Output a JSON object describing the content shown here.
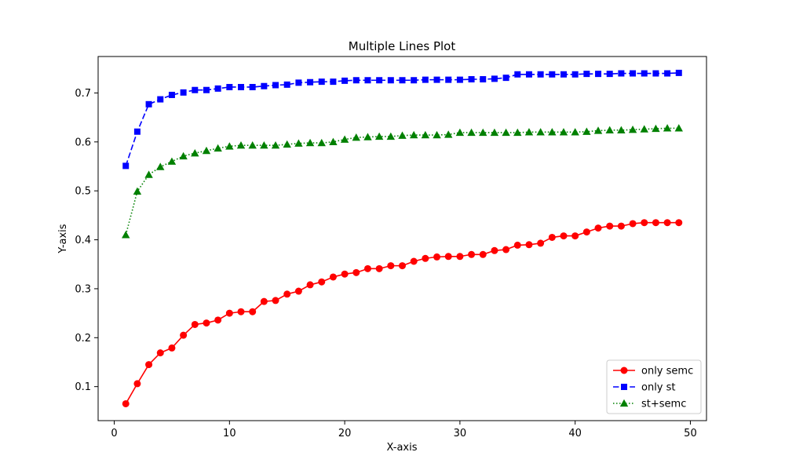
{
  "chart_data": {
    "type": "line",
    "title": "Multiple Lines Plot",
    "xlabel": "X-axis",
    "ylabel": "Y-axis",
    "xlim": [
      -1.4,
      51.4
    ],
    "ylim": [
      0.0305,
      0.7745
    ],
    "xticks": [
      0,
      10,
      20,
      30,
      40,
      50
    ],
    "yticks": [
      0.1,
      0.2,
      0.3,
      0.4,
      0.5,
      0.6,
      0.7
    ],
    "xtick_labels": [
      "0",
      "10",
      "20",
      "30",
      "40",
      "50"
    ],
    "ytick_labels": [
      "0.1",
      "0.2",
      "0.3",
      "0.4",
      "0.5",
      "0.6",
      "0.7"
    ],
    "grid": false,
    "legend_position": "lower-right",
    "x": [
      1,
      2,
      3,
      4,
      5,
      6,
      7,
      8,
      9,
      10,
      11,
      12,
      13,
      14,
      15,
      16,
      17,
      18,
      19,
      20,
      21,
      22,
      23,
      24,
      25,
      26,
      27,
      28,
      29,
      30,
      31,
      32,
      33,
      34,
      35,
      36,
      37,
      38,
      39,
      40,
      41,
      42,
      43,
      44,
      45,
      46,
      47,
      48,
      49
    ],
    "series": [
      {
        "name": "only semc",
        "color": "#ff0000",
        "line_style": "solid",
        "marker": "circle",
        "values": [
          0.065,
          0.106,
          0.145,
          0.169,
          0.179,
          0.205,
          0.227,
          0.23,
          0.236,
          0.25,
          0.253,
          0.253,
          0.274,
          0.276,
          0.289,
          0.295,
          0.308,
          0.314,
          0.324,
          0.33,
          0.333,
          0.341,
          0.341,
          0.347,
          0.347,
          0.356,
          0.362,
          0.365,
          0.366,
          0.366,
          0.37,
          0.37,
          0.378,
          0.38,
          0.389,
          0.39,
          0.393,
          0.405,
          0.408,
          0.408,
          0.416,
          0.424,
          0.428,
          0.428,
          0.433,
          0.435,
          0.435,
          0.435,
          0.435
        ]
      },
      {
        "name": "only st",
        "color": "#0000ff",
        "line_style": "dashed",
        "marker": "square",
        "values": [
          0.551,
          0.621,
          0.677,
          0.687,
          0.696,
          0.701,
          0.706,
          0.706,
          0.709,
          0.712,
          0.712,
          0.712,
          0.714,
          0.716,
          0.717,
          0.721,
          0.722,
          0.723,
          0.723,
          0.725,
          0.726,
          0.726,
          0.726,
          0.726,
          0.726,
          0.726,
          0.727,
          0.727,
          0.727,
          0.727,
          0.728,
          0.728,
          0.729,
          0.731,
          0.738,
          0.738,
          0.738,
          0.738,
          0.738,
          0.738,
          0.739,
          0.739,
          0.739,
          0.74,
          0.74,
          0.74,
          0.74,
          0.74,
          0.741
        ]
      },
      {
        "name": "st+semc",
        "color": "#008000",
        "line_style": "dotted",
        "marker": "triangle",
        "values": [
          0.41,
          0.499,
          0.533,
          0.549,
          0.56,
          0.571,
          0.577,
          0.582,
          0.587,
          0.591,
          0.593,
          0.593,
          0.593,
          0.593,
          0.595,
          0.597,
          0.598,
          0.598,
          0.6,
          0.605,
          0.609,
          0.61,
          0.611,
          0.611,
          0.613,
          0.614,
          0.614,
          0.614,
          0.615,
          0.619,
          0.619,
          0.619,
          0.619,
          0.619,
          0.619,
          0.62,
          0.62,
          0.62,
          0.62,
          0.62,
          0.621,
          0.623,
          0.624,
          0.624,
          0.625,
          0.626,
          0.627,
          0.628,
          0.628
        ]
      }
    ]
  }
}
